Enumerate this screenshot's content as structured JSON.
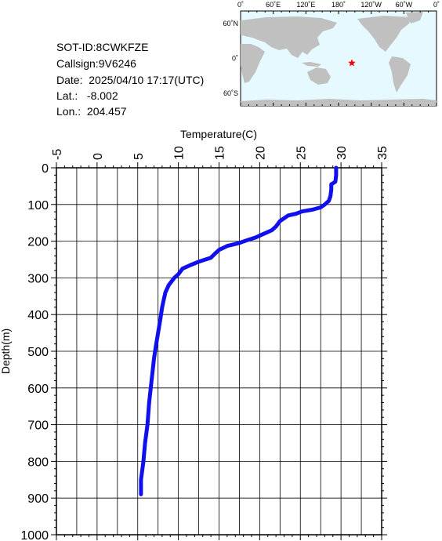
{
  "info": {
    "sot_id": "SOT-ID:8CWKFZE",
    "callsign": "Callsign:9V6246",
    "date": "Date:  2025/04/10 17:17(UTC)",
    "lat": "Lat.:   -8.002",
    "lon": "Lon.:  204.457"
  },
  "map": {
    "lon_labels": [
      "0˚",
      "60˚E",
      "120˚E",
      "180˚",
      "120˚W",
      "60˚W",
      "0˚"
    ],
    "lat_labels": [
      "60˚N",
      "0˚",
      "60˚S"
    ],
    "marker": {
      "lat": -8.002,
      "lon": 204.457,
      "color": "#ff0000"
    },
    "ocean_color": "#e6f9ff",
    "land_color": "#c0c0c0"
  },
  "chart_data": {
    "type": "line",
    "title": "",
    "xlabel": "Temperature(C)",
    "ylabel": "Depth(m)",
    "xlim": [
      -5,
      35
    ],
    "ylim": [
      1000,
      0
    ],
    "x_ticks": [
      "-5",
      "0",
      "5",
      "10",
      "15",
      "20",
      "25",
      "30",
      "35"
    ],
    "y_ticks": [
      "0",
      "100",
      "200",
      "300",
      "400",
      "500",
      "600",
      "700",
      "800",
      "900",
      "1000"
    ],
    "grid": true,
    "line_color": "#1010ee",
    "series": [
      {
        "points": [
          [
            29.4,
            0
          ],
          [
            29.4,
            20
          ],
          [
            29.3,
            38
          ],
          [
            28.8,
            45
          ],
          [
            28.8,
            60
          ],
          [
            28.7,
            78
          ],
          [
            28.5,
            90
          ],
          [
            28.0,
            100
          ],
          [
            27.5,
            108
          ],
          [
            26.5,
            114
          ],
          [
            25.2,
            119
          ],
          [
            24.5,
            125
          ],
          [
            23.5,
            130
          ],
          [
            22.5,
            145
          ],
          [
            22.0,
            160
          ],
          [
            21.5,
            170
          ],
          [
            20.5,
            180
          ],
          [
            19.5,
            190
          ],
          [
            18.5,
            197
          ],
          [
            17.5,
            205
          ],
          [
            16.0,
            213
          ],
          [
            15.0,
            224
          ],
          [
            14.5,
            234
          ],
          [
            14.0,
            245
          ],
          [
            12.5,
            256
          ],
          [
            11.5,
            265
          ],
          [
            10.5,
            275
          ],
          [
            10.0,
            290
          ],
          [
            9.5,
            300
          ],
          [
            8.8,
            320
          ],
          [
            8.4,
            340
          ],
          [
            8.2,
            360
          ],
          [
            8.0,
            380
          ],
          [
            7.8,
            410
          ],
          [
            7.5,
            450
          ],
          [
            7.2,
            490
          ],
          [
            7.0,
            520
          ],
          [
            6.7,
            580
          ],
          [
            6.4,
            640
          ],
          [
            6.2,
            700
          ],
          [
            5.9,
            750
          ],
          [
            5.7,
            800
          ],
          [
            5.4,
            850
          ],
          [
            5.4,
            890
          ]
        ]
      }
    ]
  }
}
